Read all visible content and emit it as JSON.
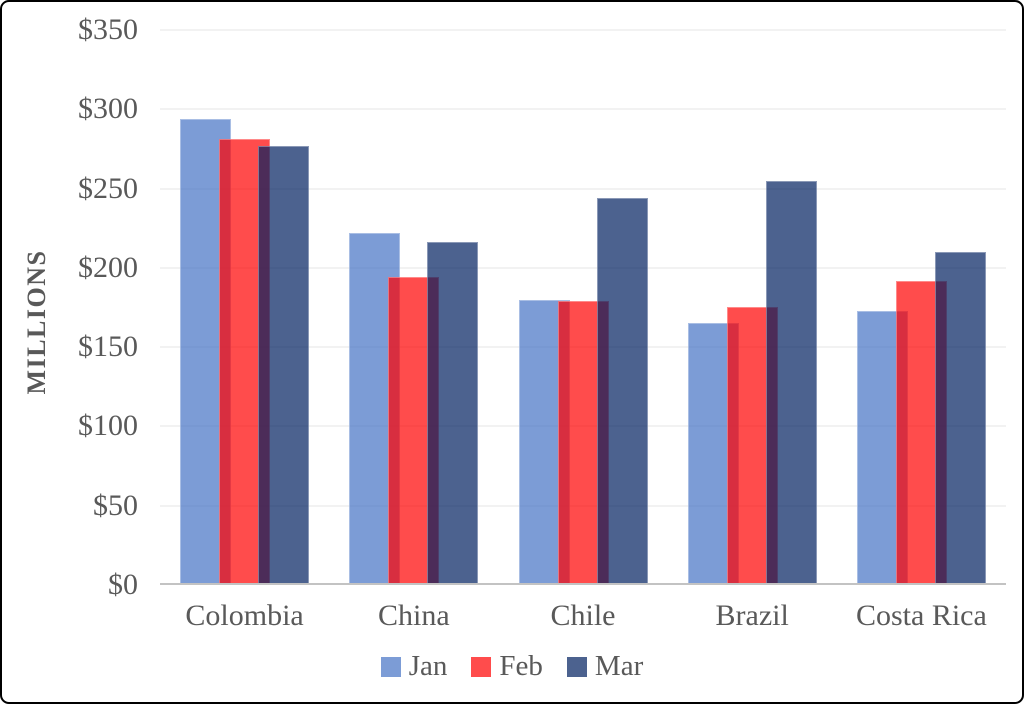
{
  "chart_data": {
    "type": "bar",
    "title": "",
    "categories": [
      "Colombia",
      "China",
      "Chile",
      "Brazil",
      "Costa Rica"
    ],
    "series": [
      {
        "name": "Jan",
        "color": "#4472C4",
        "opacity": 0.7,
        "values": [
          294,
          222,
          180,
          165,
          173
        ]
      },
      {
        "name": "Feb",
        "color": "#FF0000",
        "opacity": 0.7,
        "values": [
          281,
          194,
          179,
          175,
          192
        ]
      },
      {
        "name": "Mar",
        "color": "#002060",
        "opacity": 0.7,
        "values": [
          277,
          216,
          244,
          255,
          210
        ]
      }
    ],
    "ylabel": "MILLIONS",
    "xlabel": "",
    "y_ticks": [
      0,
      50,
      100,
      150,
      200,
      250,
      300,
      350
    ],
    "y_tick_labels": [
      "$0",
      "$50",
      "$100",
      "$150",
      "$200",
      "$250",
      "$300",
      "$350"
    ],
    "ylim": [
      0,
      350
    ],
    "grid": true,
    "legend_position": "bottom"
  },
  "colors": {
    "text": "#595959",
    "gridline": "#f2f2f2",
    "axis_line": "#c3c3c3",
    "background": "#ffffff",
    "frame_border": "#000000"
  }
}
